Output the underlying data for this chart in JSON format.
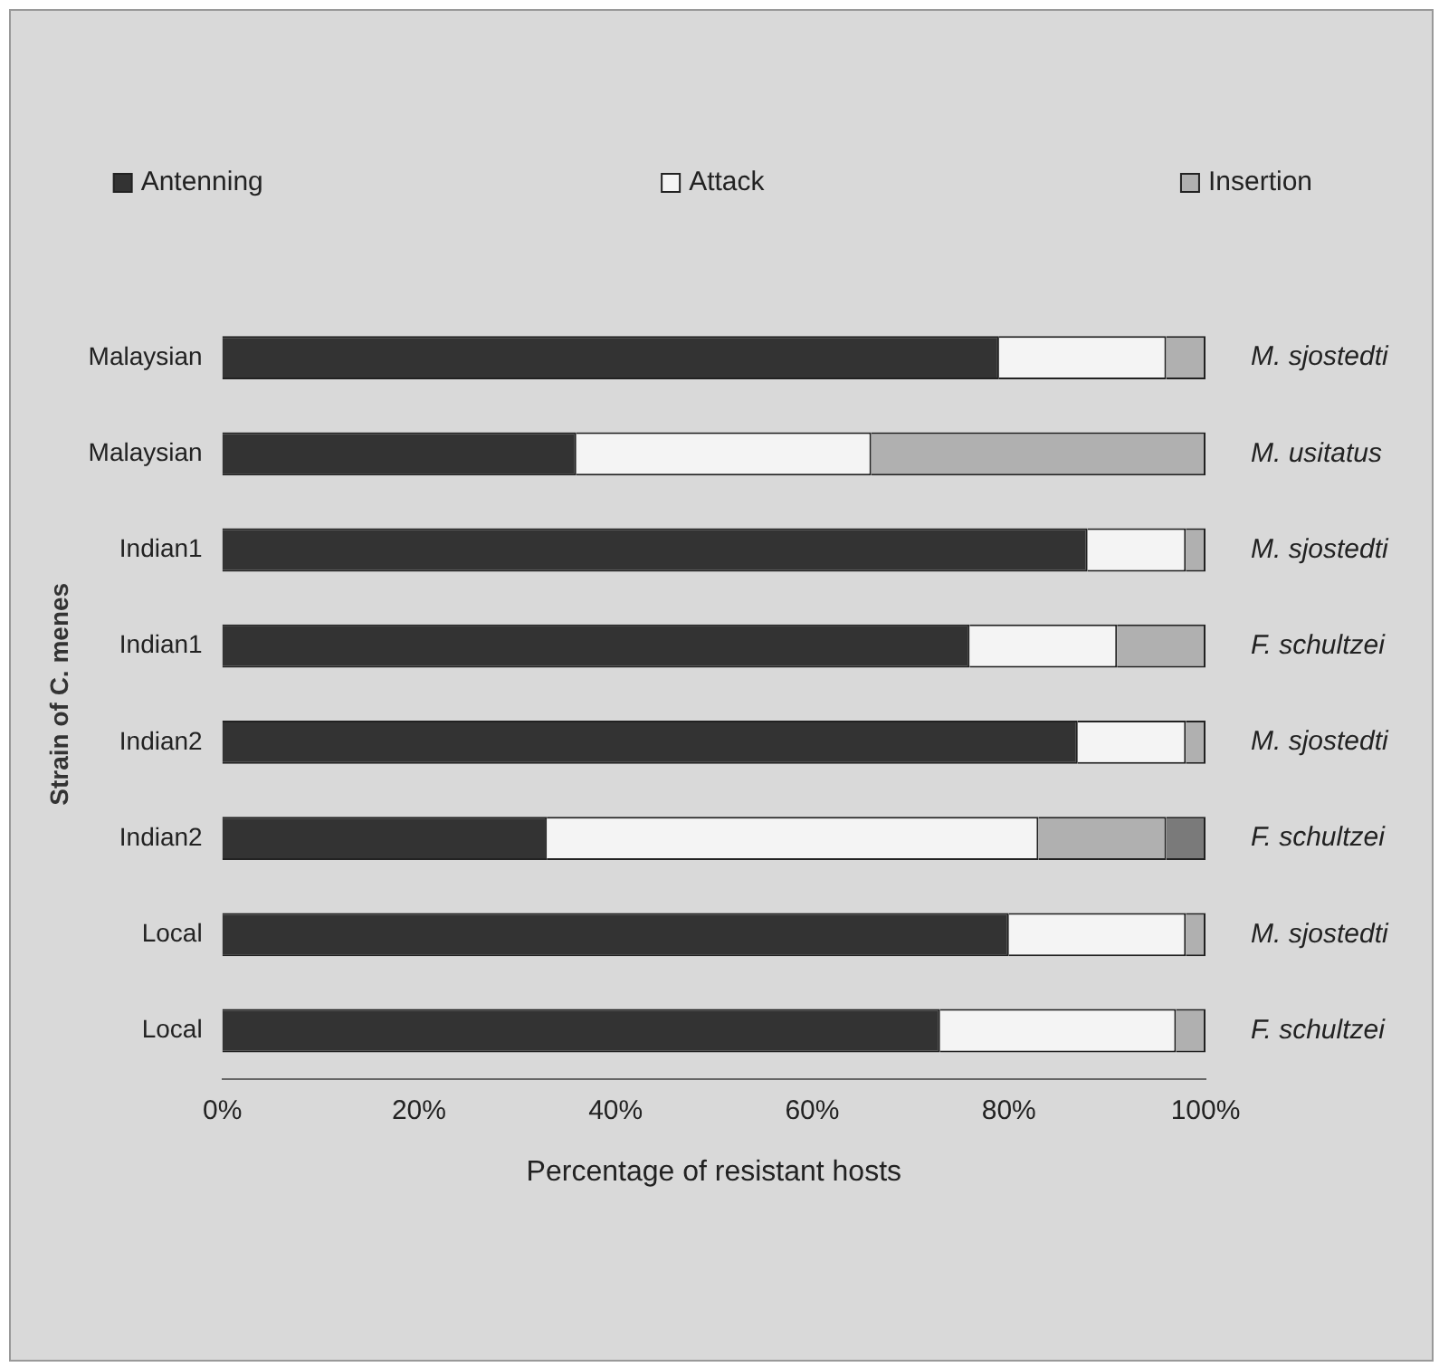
{
  "chart_data": {
    "type": "bar",
    "orientation": "horizontal",
    "stacked": true,
    "categories": [
      "Malaysian",
      "Malaysian",
      "Indian1",
      "Indian1",
      "Indian2",
      "Indian2",
      "Local",
      "Local"
    ],
    "series": [
      {
        "name": "Antenning",
        "color": "#333333",
        "values": [
          79,
          36,
          88,
          76,
          87,
          33,
          80,
          73
        ]
      },
      {
        "name": "Attack",
        "color": "#f4f4f4",
        "values": [
          17,
          30,
          10,
          15,
          11,
          50,
          18,
          24
        ]
      },
      {
        "name": "Insertion",
        "color": "#b0b0b0",
        "values": [
          4,
          34,
          2,
          9,
          2,
          13,
          2,
          3
        ]
      },
      {
        "color": "#7a7a7a",
        "values": [
          0,
          0,
          0,
          0,
          0,
          4,
          0,
          0
        ]
      }
    ],
    "xlim": [
      0,
      100
    ],
    "xticks": [
      {
        "value": 0,
        "label": "0%"
      },
      {
        "value": 20,
        "label": "20%"
      },
      {
        "value": 40,
        "label": "40%"
      },
      {
        "value": 60,
        "label": "60%"
      },
      {
        "value": 80,
        "label": "80%"
      },
      {
        "value": 100,
        "label": "100%"
      }
    ],
    "xlabel": "Percentage of resistant hosts",
    "ylabel": "Strain of C. menes",
    "annotations": [
      "M. sjostedti",
      "M. usitatus",
      "M. sjostedti",
      "F. schultzei",
      "M. sjostedti",
      "F. schultzei",
      "M. sjostedti",
      "F. schultzei"
    ],
    "legend": "top",
    "grid": false
  }
}
